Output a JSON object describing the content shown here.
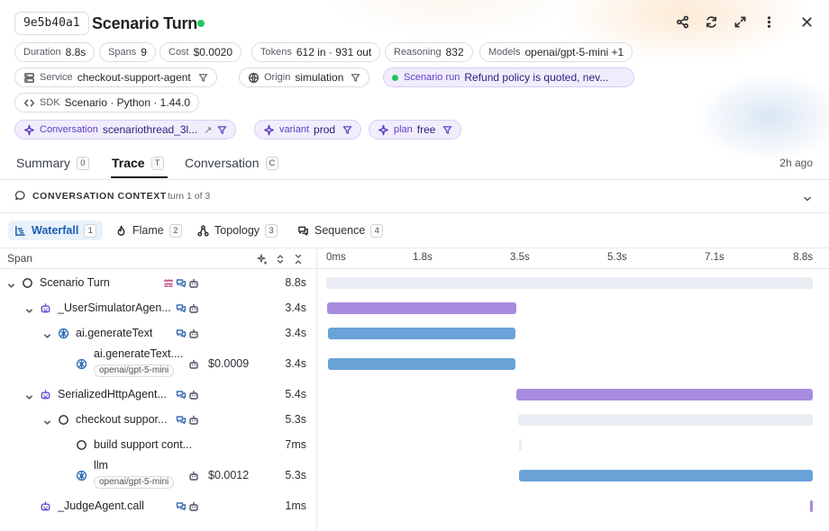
{
  "header": {
    "trace_id": "9e5b40a1",
    "title": "Scenario Turn",
    "status_color": "#22c55e",
    "actions": [
      "share-icon",
      "refresh-icon",
      "expand-icon",
      "more-vertical-icon",
      "close-icon"
    ]
  },
  "chips": {
    "duration": {
      "key": "Duration",
      "value": "8.8s"
    },
    "spans": {
      "key": "Spans",
      "value": "9"
    },
    "cost": {
      "key": "Cost",
      "value": "$0.0020"
    },
    "tokens": {
      "key": "Tokens",
      "value": "612 in · 931 out"
    },
    "reasoning": {
      "key": "Reasoning",
      "value": "832"
    },
    "models": {
      "key": "Models",
      "value": "openai/gpt-5-mini +1"
    },
    "service": {
      "key": "Service",
      "value": "checkout-support-agent"
    },
    "origin": {
      "key": "Origin",
      "value": "simulation"
    },
    "scenario_run": {
      "key": "Scenario run",
      "value": "Refund policy is quoted, nev..."
    },
    "sdk": {
      "key": "SDK",
      "value": "Scenario · Python · 1.44.0"
    },
    "conversation": {
      "key": "Conversation",
      "value": "scenariothread_3l..."
    },
    "variant": {
      "key": "variant",
      "value": "prod"
    },
    "plan": {
      "key": "plan",
      "value": "free"
    }
  },
  "tabs": [
    {
      "label": "Summary",
      "key": "0"
    },
    {
      "label": "Trace",
      "key": "T"
    },
    {
      "label": "Conversation",
      "key": "C"
    }
  ],
  "active_tab": "Trace",
  "time_ago": "2h ago",
  "context": {
    "label": "CONVERSATION CONTEXT",
    "sub": "turn 1 of 3"
  },
  "views": [
    {
      "label": "Waterfall",
      "key": "1"
    },
    {
      "label": "Flame",
      "key": "2"
    },
    {
      "label": "Topology",
      "key": "3"
    },
    {
      "label": "Sequence",
      "key": "4"
    }
  ],
  "span_header": "Span",
  "timeline": {
    "total_s": 8.8,
    "ticks": [
      "0ms",
      "1.8s",
      "3.5s",
      "5.3s",
      "7.1s",
      "8.8s"
    ]
  },
  "colors": {
    "agent": "#a78bde",
    "llm": "#6aa3d8",
    "span": "#e9ecf3"
  },
  "spans": [
    {
      "name": "Scenario Turn",
      "depth": 0,
      "chevron": true,
      "icon": "circle-icon",
      "duration": "8.8s",
      "cost": "",
      "model": "",
      "start_s": 0,
      "dur_s": 8.8,
      "kind": "span",
      "badges": [
        "scenario-badge-icon",
        "chat-icon",
        "bot-icon"
      ]
    },
    {
      "name": "_UserSimulatorAgen...",
      "depth": 1,
      "chevron": true,
      "icon": "bot-icon",
      "duration": "3.4s",
      "cost": "",
      "model": "",
      "start_s": 0.02,
      "dur_s": 3.42,
      "kind": "agent",
      "badges": [
        "chat-icon",
        "bot-icon"
      ]
    },
    {
      "name": "ai.generateText",
      "depth": 2,
      "chevron": true,
      "icon": "brain-icon",
      "duration": "3.4s",
      "cost": "",
      "model": "",
      "start_s": 0.04,
      "dur_s": 3.38,
      "kind": "llm",
      "badges": [
        "chat-icon",
        "bot-icon"
      ]
    },
    {
      "name": "ai.generateText....",
      "depth": 3,
      "chevron": false,
      "icon": "brain-icon",
      "duration": "3.4s",
      "cost": "$0.0009",
      "model": "openai/gpt-5-mini",
      "start_s": 0.04,
      "dur_s": 3.38,
      "kind": "llm",
      "badges": [
        "bot-icon"
      ]
    },
    {
      "name": "SerializedHttpAgent...",
      "depth": 1,
      "chevron": true,
      "icon": "bot-icon",
      "duration": "5.4s",
      "cost": "",
      "model": "",
      "start_s": 3.44,
      "dur_s": 5.36,
      "kind": "agent",
      "badges": [
        "chat-icon",
        "bot-icon"
      ]
    },
    {
      "name": "checkout suppor...",
      "depth": 2,
      "chevron": true,
      "icon": "circle-icon",
      "duration": "5.3s",
      "cost": "",
      "model": "",
      "start_s": 3.47,
      "dur_s": 5.33,
      "kind": "span",
      "badges": [
        "chat-icon",
        "bot-icon"
      ]
    },
    {
      "name": "build support cont...",
      "depth": 3,
      "chevron": false,
      "icon": "circle-icon",
      "duration": "7ms",
      "cost": "",
      "model": "",
      "start_s": 3.48,
      "dur_s": 0.007,
      "kind": "span",
      "badges": []
    },
    {
      "name": "llm",
      "depth": 3,
      "chevron": false,
      "icon": "brain-icon",
      "duration": "5.3s",
      "cost": "$0.0012",
      "model": "openai/gpt-5-mini",
      "start_s": 3.49,
      "dur_s": 5.31,
      "kind": "llm",
      "badges": [
        "bot-icon"
      ]
    },
    {
      "name": "_JudgeAgent.call",
      "depth": 1,
      "chevron": false,
      "icon": "bot-icon",
      "duration": "1ms",
      "cost": "",
      "model": "",
      "start_s": 8.79,
      "dur_s": 0.001,
      "kind": "agent",
      "badges": [
        "chat-icon",
        "bot-icon"
      ]
    }
  ]
}
